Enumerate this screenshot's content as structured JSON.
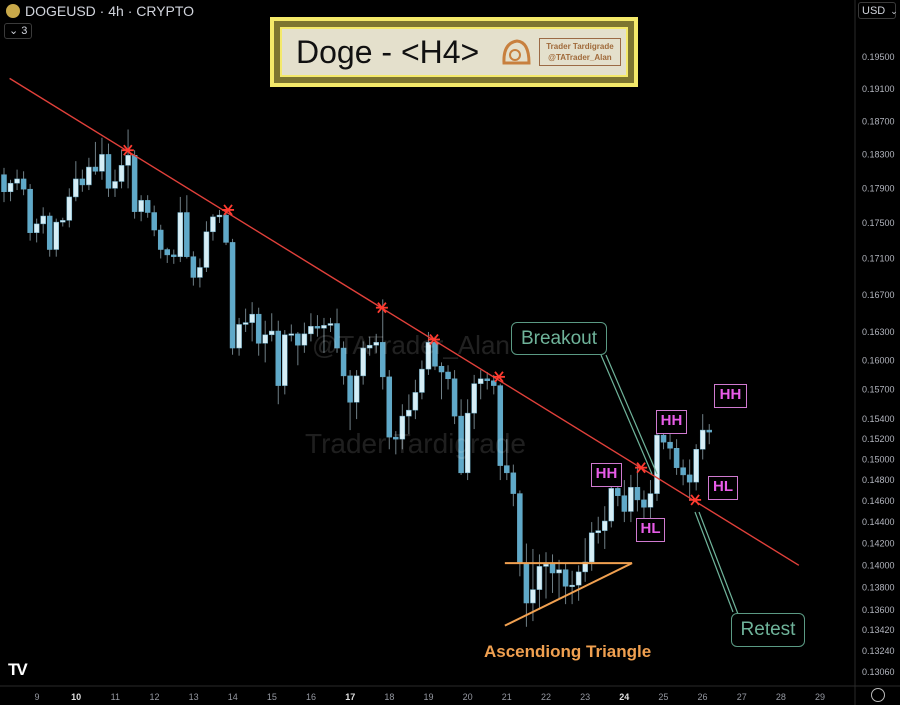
{
  "header": {
    "symbol": "DOGEUSD · 4h · CRYPTO",
    "indicator_count": "3",
    "currency": "USD"
  },
  "banner": {
    "title": "Doge - <H4>",
    "brand_line1": "Trader Tardigrade",
    "brand_line2": "@TATrader_Alan"
  },
  "watermarks": {
    "handle": "@TATrader_Alan",
    "name": "Trader Tardigrade"
  },
  "annotations": {
    "breakout": "Breakout",
    "retest": "Retest",
    "triangle": "Ascendiong Triangle",
    "hh1": "HH",
    "hl1": "HL",
    "hh2": "HH",
    "hl2": "HL",
    "hh3": "HH"
  },
  "colors": {
    "up": "#d6eef6",
    "down": "#5fa9c9",
    "trendline": "#e0403a",
    "triangle": "#f0a050",
    "label": "#e85ce8",
    "note": "#6fb39a"
  },
  "chart_data": {
    "type": "candlestick",
    "interval": "4h",
    "y_scale": "log",
    "ylim": [
      0.1295,
      0.1975
    ],
    "y_ticks": [
      0.195,
      0.191,
      0.187,
      0.183,
      0.179,
      0.175,
      0.171,
      0.167,
      0.163,
      0.16,
      0.157,
      0.154,
      0.152,
      0.15,
      0.148,
      0.146,
      0.144,
      0.142,
      0.14,
      0.138,
      0.136,
      0.1342,
      0.1324,
      0.1306
    ],
    "y_tick_labels": [
      "0.19500",
      "0.19100",
      "0.18700",
      "0.18300",
      "0.17900",
      "0.17500",
      "0.17100",
      "0.16700",
      "0.16300",
      "0.16000",
      "0.15700",
      "0.15400",
      "0.15200",
      "0.15000",
      "0.14800",
      "0.14600",
      "0.14400",
      "0.14200",
      "0.14000",
      "0.13800",
      "0.13600",
      "0.13420",
      "0.13240",
      "0.13060"
    ],
    "x_tick_labels": [
      "9",
      "10",
      "11",
      "12",
      "13",
      "14",
      "15",
      "16",
      "17",
      "18",
      "19",
      "20",
      "21",
      "22",
      "23",
      "24",
      "25",
      "26",
      "27",
      "28",
      "29"
    ],
    "x_bold_labels": [
      "10",
      "17",
      "24"
    ],
    "grid": false,
    "candles_ohlc": [
      [
        0.1806,
        0.1814,
        0.1774,
        0.1786
      ],
      [
        0.1786,
        0.18,
        0.1775,
        0.1796
      ],
      [
        0.1796,
        0.1812,
        0.1788,
        0.1801
      ],
      [
        0.1801,
        0.181,
        0.1782,
        0.1789
      ],
      [
        0.1789,
        0.1795,
        0.173,
        0.1739
      ],
      [
        0.1739,
        0.1755,
        0.1728,
        0.1749
      ],
      [
        0.1749,
        0.1768,
        0.1738,
        0.1758
      ],
      [
        0.1758,
        0.1762,
        0.1712,
        0.172
      ],
      [
        0.172,
        0.1755,
        0.1712,
        0.1751
      ],
      [
        0.1751,
        0.1756,
        0.1746,
        0.1753
      ],
      [
        0.1753,
        0.179,
        0.1745,
        0.178
      ],
      [
        0.178,
        0.1822,
        0.1775,
        0.1801
      ],
      [
        0.1801,
        0.1812,
        0.1786,
        0.1794
      ],
      [
        0.1794,
        0.1826,
        0.1788,
        0.1815
      ],
      [
        0.1815,
        0.1845,
        0.1806,
        0.181
      ],
      [
        0.181,
        0.185,
        0.18,
        0.183
      ],
      [
        0.183,
        0.1843,
        0.178,
        0.179
      ],
      [
        0.179,
        0.1812,
        0.178,
        0.1798
      ],
      [
        0.1798,
        0.1836,
        0.179,
        0.1817
      ],
      [
        0.1817,
        0.186,
        0.179,
        0.1829
      ],
      [
        0.1829,
        0.1835,
        0.1755,
        0.1763
      ],
      [
        0.1763,
        0.1782,
        0.1752,
        0.1776
      ],
      [
        0.1776,
        0.1782,
        0.1756,
        0.1762
      ],
      [
        0.1762,
        0.177,
        0.1735,
        0.1742
      ],
      [
        0.1742,
        0.1748,
        0.171,
        0.172
      ],
      [
        0.172,
        0.1722,
        0.1705,
        0.1714
      ],
      [
        0.1714,
        0.172,
        0.1704,
        0.1712
      ],
      [
        0.1712,
        0.178,
        0.1706,
        0.1762
      ],
      [
        0.1762,
        0.1782,
        0.171,
        0.1712
      ],
      [
        0.1712,
        0.1718,
        0.168,
        0.1689
      ],
      [
        0.1689,
        0.171,
        0.1678,
        0.17
      ],
      [
        0.17,
        0.1752,
        0.1695,
        0.174
      ],
      [
        0.174,
        0.176,
        0.173,
        0.1757
      ],
      [
        0.1757,
        0.1765,
        0.175,
        0.1759
      ],
      [
        0.1759,
        0.1765,
        0.1725,
        0.1728
      ],
      [
        0.1728,
        0.1732,
        0.1606,
        0.1613
      ],
      [
        0.1613,
        0.1645,
        0.1605,
        0.1638
      ],
      [
        0.1638,
        0.1655,
        0.163,
        0.164
      ],
      [
        0.164,
        0.1662,
        0.162,
        0.1649
      ],
      [
        0.1649,
        0.1656,
        0.1605,
        0.1618
      ],
      [
        0.1618,
        0.1642,
        0.1598,
        0.1627
      ],
      [
        0.1627,
        0.165,
        0.162,
        0.1631
      ],
      [
        0.1631,
        0.1642,
        0.1555,
        0.1574
      ],
      [
        0.1574,
        0.1632,
        0.1565,
        0.1627
      ],
      [
        0.1627,
        0.1638,
        0.162,
        0.1628
      ],
      [
        0.1628,
        0.163,
        0.1595,
        0.1616
      ],
      [
        0.1616,
        0.164,
        0.1608,
        0.1628
      ],
      [
        0.1628,
        0.165,
        0.162,
        0.1636
      ],
      [
        0.1636,
        0.1648,
        0.1625,
        0.1634
      ],
      [
        0.1634,
        0.1645,
        0.1608,
        0.1637
      ],
      [
        0.1637,
        0.1645,
        0.163,
        0.1639
      ],
      [
        0.1639,
        0.1655,
        0.1608,
        0.1613
      ],
      [
        0.1613,
        0.162,
        0.1575,
        0.1584
      ],
      [
        0.1584,
        0.159,
        0.1529,
        0.1557
      ],
      [
        0.1557,
        0.159,
        0.154,
        0.1584
      ],
      [
        0.1584,
        0.162,
        0.1575,
        0.1613
      ],
      [
        0.1613,
        0.1625,
        0.1605,
        0.1616
      ],
      [
        0.1616,
        0.1628,
        0.1608,
        0.1619
      ],
      [
        0.1619,
        0.1665,
        0.157,
        0.1583
      ],
      [
        0.1583,
        0.159,
        0.151,
        0.1522
      ],
      [
        0.1522,
        0.1528,
        0.1505,
        0.152
      ],
      [
        0.152,
        0.1555,
        0.151,
        0.1543
      ],
      [
        0.1543,
        0.1565,
        0.1525,
        0.1549
      ],
      [
        0.1549,
        0.158,
        0.154,
        0.1567
      ],
      [
        0.1567,
        0.16,
        0.156,
        0.1591
      ],
      [
        0.1591,
        0.163,
        0.1585,
        0.1619
      ],
      [
        0.1619,
        0.1625,
        0.159,
        0.1594
      ],
      [
        0.1594,
        0.1598,
        0.156,
        0.1588
      ],
      [
        0.1588,
        0.1595,
        0.157,
        0.1581
      ],
      [
        0.1581,
        0.159,
        0.1535,
        0.1543
      ],
      [
        0.1543,
        0.156,
        0.1485,
        0.1487
      ],
      [
        0.1487,
        0.156,
        0.148,
        0.1546
      ],
      [
        0.1546,
        0.1585,
        0.153,
        0.1576
      ],
      [
        0.1576,
        0.159,
        0.156,
        0.1581
      ],
      [
        0.1581,
        0.1588,
        0.157,
        0.1579
      ],
      [
        0.1579,
        0.1585,
        0.1565,
        0.1574
      ],
      [
        0.1574,
        0.1576,
        0.148,
        0.1494
      ],
      [
        0.1494,
        0.152,
        0.148,
        0.1487
      ],
      [
        0.1487,
        0.1495,
        0.1455,
        0.1467
      ],
      [
        0.1467,
        0.147,
        0.139,
        0.1402
      ],
      [
        0.1402,
        0.142,
        0.1345,
        0.1366
      ],
      [
        0.1366,
        0.1415,
        0.135,
        0.1378
      ],
      [
        0.1378,
        0.141,
        0.136,
        0.1399
      ],
      [
        0.1399,
        0.1412,
        0.137,
        0.1401
      ],
      [
        0.1401,
        0.141,
        0.1375,
        0.1393
      ],
      [
        0.1393,
        0.1405,
        0.137,
        0.1396
      ],
      [
        0.1396,
        0.1402,
        0.1365,
        0.1381
      ],
      [
        0.1381,
        0.1395,
        0.1365,
        0.1382
      ],
      [
        0.1382,
        0.14,
        0.1368,
        0.1394
      ],
      [
        0.1394,
        0.1425,
        0.1385,
        0.1403
      ],
      [
        0.1403,
        0.144,
        0.1395,
        0.143
      ],
      [
        0.143,
        0.1445,
        0.142,
        0.1432
      ],
      [
        0.1432,
        0.1455,
        0.1415,
        0.1441
      ],
      [
        0.1441,
        0.148,
        0.1435,
        0.1472
      ],
      [
        0.1472,
        0.148,
        0.1455,
        0.1465
      ],
      [
        0.1465,
        0.148,
        0.144,
        0.145
      ],
      [
        0.145,
        0.1485,
        0.144,
        0.1473
      ],
      [
        0.1473,
        0.1495,
        0.145,
        0.1461
      ],
      [
        0.1461,
        0.147,
        0.144,
        0.1454
      ],
      [
        0.1454,
        0.148,
        0.144,
        0.1467
      ],
      [
        0.1467,
        0.1535,
        0.146,
        0.1524
      ],
      [
        0.1524,
        0.154,
        0.151,
        0.1517
      ],
      [
        0.1517,
        0.1525,
        0.15,
        0.1511
      ],
      [
        0.1511,
        0.152,
        0.1485,
        0.1492
      ],
      [
        0.1492,
        0.15,
        0.1475,
        0.1485
      ],
      [
        0.1485,
        0.15,
        0.146,
        0.1478
      ],
      [
        0.1478,
        0.1515,
        0.147,
        0.151
      ],
      [
        0.151,
        0.1545,
        0.15,
        0.1529
      ],
      [
        0.1529,
        0.1535,
        0.1515,
        0.1527
      ]
    ],
    "trendline": {
      "from": {
        "day": 8.3,
        "price": 0.1923
      },
      "to": {
        "day": 28.46,
        "price": 0.14
      }
    },
    "touch_points": [
      {
        "day": 11.32,
        "price": 0.1835
      },
      {
        "day": 13.88,
        "price": 0.1765
      },
      {
        "day": 17.81,
        "price": 0.1656
      },
      {
        "day": 19.14,
        "price": 0.1622
      },
      {
        "day": 20.8,
        "price": 0.1583
      },
      {
        "day": 24.43,
        "price": 0.1492
      },
      {
        "day": 25.81,
        "price": 0.1461
      }
    ],
    "triangle": {
      "resistance": {
        "from": {
          "day": 20.95,
          "price": 0.1402
        },
        "to": {
          "day": 24.2,
          "price": 0.1402
        }
      },
      "support": {
        "from": {
          "day": 20.95,
          "price": 0.1346
        },
        "to": {
          "day": 24.2,
          "price": 0.1402
        }
      }
    }
  }
}
